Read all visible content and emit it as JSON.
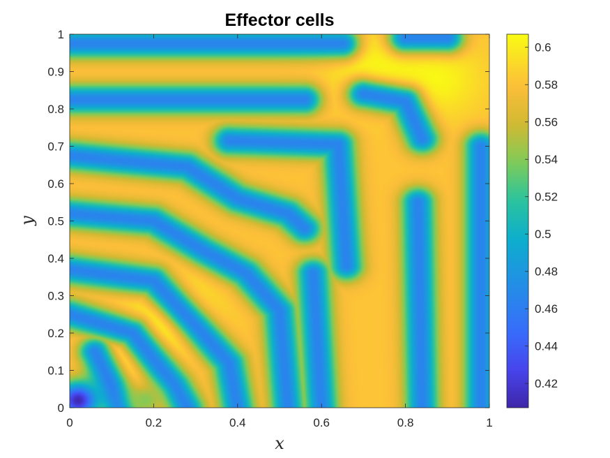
{
  "chart_data": {
    "type": "heatmap",
    "title": "Effector cells",
    "xlabel": "x",
    "ylabel": "y",
    "xlim": [
      0,
      1
    ],
    "ylim": [
      0,
      1
    ],
    "x_ticks": [
      "0",
      "0.2",
      "0.4",
      "0.6",
      "0.8",
      "1"
    ],
    "y_ticks": [
      "0",
      "0.1",
      "0.2",
      "0.3",
      "0.4",
      "0.5",
      "0.6",
      "0.7",
      "0.8",
      "0.9",
      "1"
    ],
    "colorbar": {
      "colormap": "parula",
      "clim": [
        0.407,
        0.607
      ],
      "ticks": [
        "0.42",
        "0.44",
        "0.46",
        "0.48",
        "0.5",
        "0.52",
        "0.54",
        "0.56",
        "0.58",
        "0.6"
      ]
    },
    "field": {
      "description_type": "labyrinthine stripe pattern",
      "low_strips": [
        {
          "points": [
            [
              0.0,
              0.975
            ],
            [
              0.65,
              0.975
            ]
          ]
        },
        {
          "points": [
            [
              0.0,
              0.825
            ],
            [
              0.56,
              0.825
            ]
          ]
        },
        {
          "points": [
            [
              0.0,
              0.675
            ],
            [
              0.28,
              0.645
            ],
            [
              0.4,
              0.56
            ],
            [
              0.52,
              0.52
            ],
            [
              0.56,
              0.48
            ]
          ]
        },
        {
          "points": [
            [
              0.0,
              0.52
            ],
            [
              0.2,
              0.5
            ],
            [
              0.32,
              0.42
            ],
            [
              0.42,
              0.36
            ],
            [
              0.5,
              0.26
            ],
            [
              0.52,
              0.0
            ]
          ]
        },
        {
          "points": [
            [
              0.0,
              0.37
            ],
            [
              0.2,
              0.34
            ],
            [
              0.3,
              0.22
            ],
            [
              0.38,
              0.12
            ],
            [
              0.4,
              0.0
            ]
          ]
        },
        {
          "points": [
            [
              0.0,
              0.25
            ],
            [
              0.15,
              0.2
            ],
            [
              0.25,
              0.06
            ],
            [
              0.28,
              0.0
            ]
          ]
        },
        {
          "points": [
            [
              0.06,
              0.15
            ],
            [
              0.1,
              0.06
            ],
            [
              0.12,
              0.0
            ]
          ]
        },
        {
          "points": [
            [
              0.58,
              0.36
            ],
            [
              0.6,
              0.0
            ]
          ]
        },
        {
          "points": [
            [
              0.38,
              0.715
            ],
            [
              0.64,
              0.705
            ],
            [
              0.66,
              0.38
            ]
          ]
        },
        {
          "points": [
            [
              0.7,
              0.84
            ],
            [
              0.8,
              0.82
            ],
            [
              0.84,
              0.72
            ]
          ]
        },
        {
          "points": [
            [
              0.83,
              0.55
            ],
            [
              0.84,
              0.0
            ]
          ]
        },
        {
          "points": [
            [
              0.98,
              0.7
            ],
            [
              0.98,
              0.0
            ]
          ]
        },
        {
          "points": [
            [
              0.8,
              0.99
            ],
            [
              0.9,
              0.99
            ]
          ]
        }
      ],
      "high_spots": [
        {
          "at": [
            0.25,
            0.25
          ]
        },
        {
          "at": [
            0.88,
            0.88
          ]
        },
        {
          "at": [
            0.12,
            0.15
          ]
        },
        {
          "at": [
            0.72,
            0.9
          ]
        }
      ],
      "minimum": {
        "at": [
          0.02,
          0.02
        ],
        "value": 0.41
      },
      "secondary_low": {
        "at": [
          0.18,
          0.02
        ],
        "value": 0.54
      }
    }
  }
}
